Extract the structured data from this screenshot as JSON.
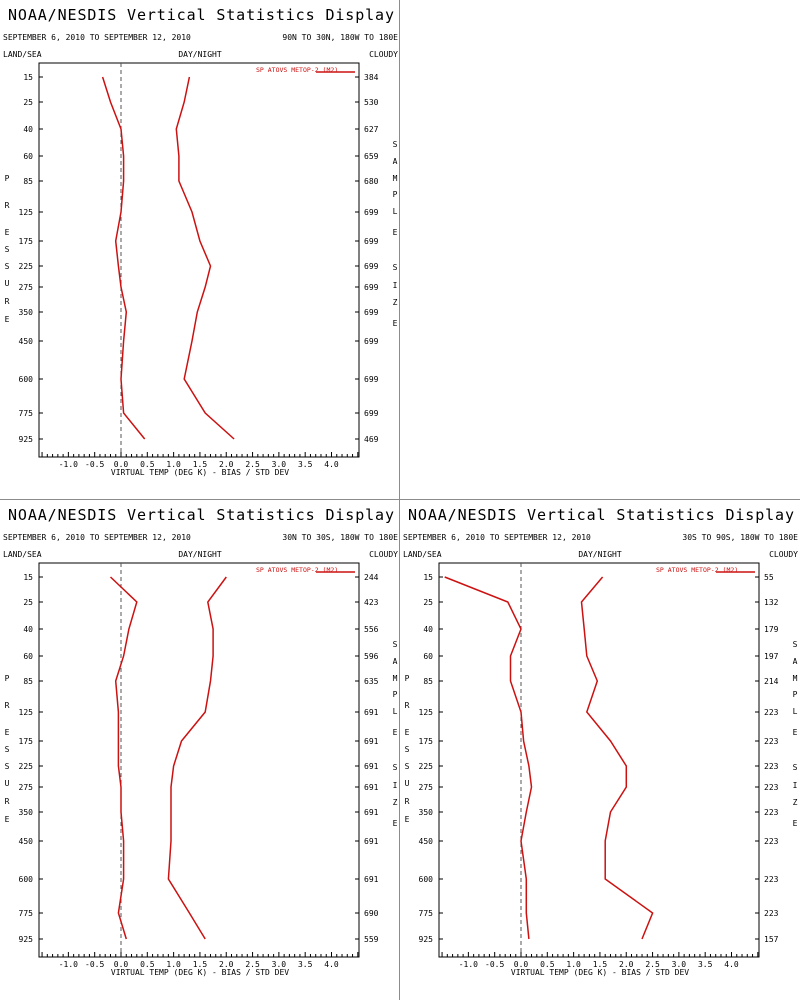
{
  "colors": {
    "series": "#cc1111",
    "axis": "#000000",
    "zero_line": "#555555",
    "divider": "#8c8c8c"
  },
  "labels": {
    "land_sea": "LAND/SEA",
    "day_night": "DAY/NIGHT",
    "cloudy": "CLOUDY",
    "pressure_letters": [
      "P",
      "R",
      "E",
      "S",
      "S",
      "U",
      "R",
      "E"
    ],
    "sample_size_letters": [
      "S",
      "A",
      "M",
      "P",
      "L",
      "E",
      "",
      "S",
      "I",
      "Z",
      "E"
    ]
  },
  "chart_data": [
    {
      "type": "line",
      "title": "NOAA/NESDIS Vertical Statistics Display",
      "date_range": "SEPTEMBER 6, 2010 TO SEPTEMBER 12, 2010",
      "region": "90N TO 30N, 180W TO 180E",
      "legend": "SP ATOVS METOP-2 (M2)",
      "legend_position": "top-right",
      "xlabel": "VIRTUAL TEMP (DEG K) - BIAS / STD DEV",
      "ylabel": "PRESSURE",
      "right_label": "SAMPLE SIZE",
      "xlim": [
        -1.5,
        4.5
      ],
      "xticks": [
        "-1.0",
        "-0.5",
        "0.0",
        "0.5",
        "1.0",
        "1.5",
        "2.0",
        "2.5",
        "3.0",
        "3.5",
        "4.0"
      ],
      "pressure_levels": [
        "15",
        "25",
        "40",
        "60",
        "85",
        "125",
        "175",
        "225",
        "275",
        "350",
        "450",
        "600",
        "775",
        "925"
      ],
      "sample_sizes": [
        "384",
        "530",
        "627",
        "659",
        "680",
        "699",
        "699",
        "699",
        "699",
        "699",
        "699",
        "699",
        "699",
        "469"
      ],
      "series": [
        {
          "name": "bias",
          "values": [
            -0.35,
            -0.2,
            0.0,
            0.05,
            0.05,
            0.0,
            -0.1,
            -0.05,
            0.0,
            0.1,
            0.05,
            0.0,
            0.05,
            0.45
          ]
        },
        {
          "name": "std_dev",
          "values": [
            1.3,
            1.2,
            1.05,
            1.1,
            1.1,
            1.35,
            1.5,
            1.7,
            1.6,
            1.45,
            1.35,
            1.2,
            1.6,
            2.15
          ]
        }
      ]
    },
    {
      "type": "line",
      "title": "NOAA/NESDIS Vertical Statistics Display",
      "date_range": "SEPTEMBER 6, 2010 TO SEPTEMBER 12, 2010",
      "region": "30N TO 30S, 180W TO 180E",
      "legend": "SP ATOVS METOP-2 (M2)",
      "legend_position": "top-right",
      "xlabel": "VIRTUAL TEMP (DEG K) - BIAS / STD DEV",
      "ylabel": "PRESSURE",
      "right_label": "SAMPLE SIZE",
      "xlim": [
        -1.5,
        4.5
      ],
      "xticks": [
        "-1.0",
        "-0.5",
        "0.0",
        "0.5",
        "1.0",
        "1.5",
        "2.0",
        "2.5",
        "3.0",
        "3.5",
        "4.0"
      ],
      "pressure_levels": [
        "15",
        "25",
        "40",
        "60",
        "85",
        "125",
        "175",
        "225",
        "275",
        "350",
        "450",
        "600",
        "775",
        "925"
      ],
      "sample_sizes": [
        "244",
        "423",
        "556",
        "596",
        "635",
        "691",
        "691",
        "691",
        "691",
        "691",
        "691",
        "691",
        "690",
        "559"
      ],
      "series": [
        {
          "name": "bias",
          "values": [
            -0.2,
            0.3,
            0.15,
            0.05,
            -0.1,
            -0.05,
            -0.05,
            -0.05,
            0.0,
            0.0,
            0.05,
            0.05,
            -0.05,
            0.1
          ]
        },
        {
          "name": "std_dev",
          "values": [
            2.0,
            1.65,
            1.75,
            1.75,
            1.7,
            1.6,
            1.15,
            1.0,
            0.95,
            0.95,
            0.95,
            0.9,
            1.3,
            1.6
          ]
        }
      ]
    },
    {
      "type": "line",
      "title": "NOAA/NESDIS Vertical Statistics Display",
      "date_range": "SEPTEMBER 6, 2010 TO SEPTEMBER 12, 2010",
      "region": "30S TO 90S, 180W TO 180E",
      "legend": "SP ATOVS METOP-2 (M2)",
      "legend_position": "top-right",
      "xlabel": "VIRTUAL TEMP (DEG K) - BIAS / STD DEV",
      "ylabel": "PRESSURE",
      "right_label": "SAMPLE SIZE",
      "xlim": [
        -1.5,
        4.5
      ],
      "xticks": [
        "-1.0",
        "-0.5",
        "0.0",
        "0.5",
        "1.0",
        "1.5",
        "2.0",
        "2.5",
        "3.0",
        "3.5",
        "4.0"
      ],
      "pressure_levels": [
        "15",
        "25",
        "40",
        "60",
        "85",
        "125",
        "175",
        "225",
        "275",
        "350",
        "450",
        "600",
        "775",
        "925"
      ],
      "sample_sizes": [
        "55",
        "132",
        "179",
        "197",
        "214",
        "223",
        "223",
        "223",
        "223",
        "223",
        "223",
        "223",
        "223",
        "157"
      ],
      "series": [
        {
          "name": "bias",
          "values": [
            -1.45,
            -0.25,
            0.0,
            -0.2,
            -0.2,
            0.0,
            0.05,
            0.15,
            0.2,
            0.1,
            0.0,
            0.1,
            0.1,
            0.15
          ]
        },
        {
          "name": "std_dev",
          "values": [
            1.55,
            1.15,
            1.2,
            1.25,
            1.45,
            1.25,
            1.7,
            2.0,
            2.0,
            1.7,
            1.6,
            1.6,
            2.5,
            2.3
          ]
        }
      ]
    }
  ]
}
